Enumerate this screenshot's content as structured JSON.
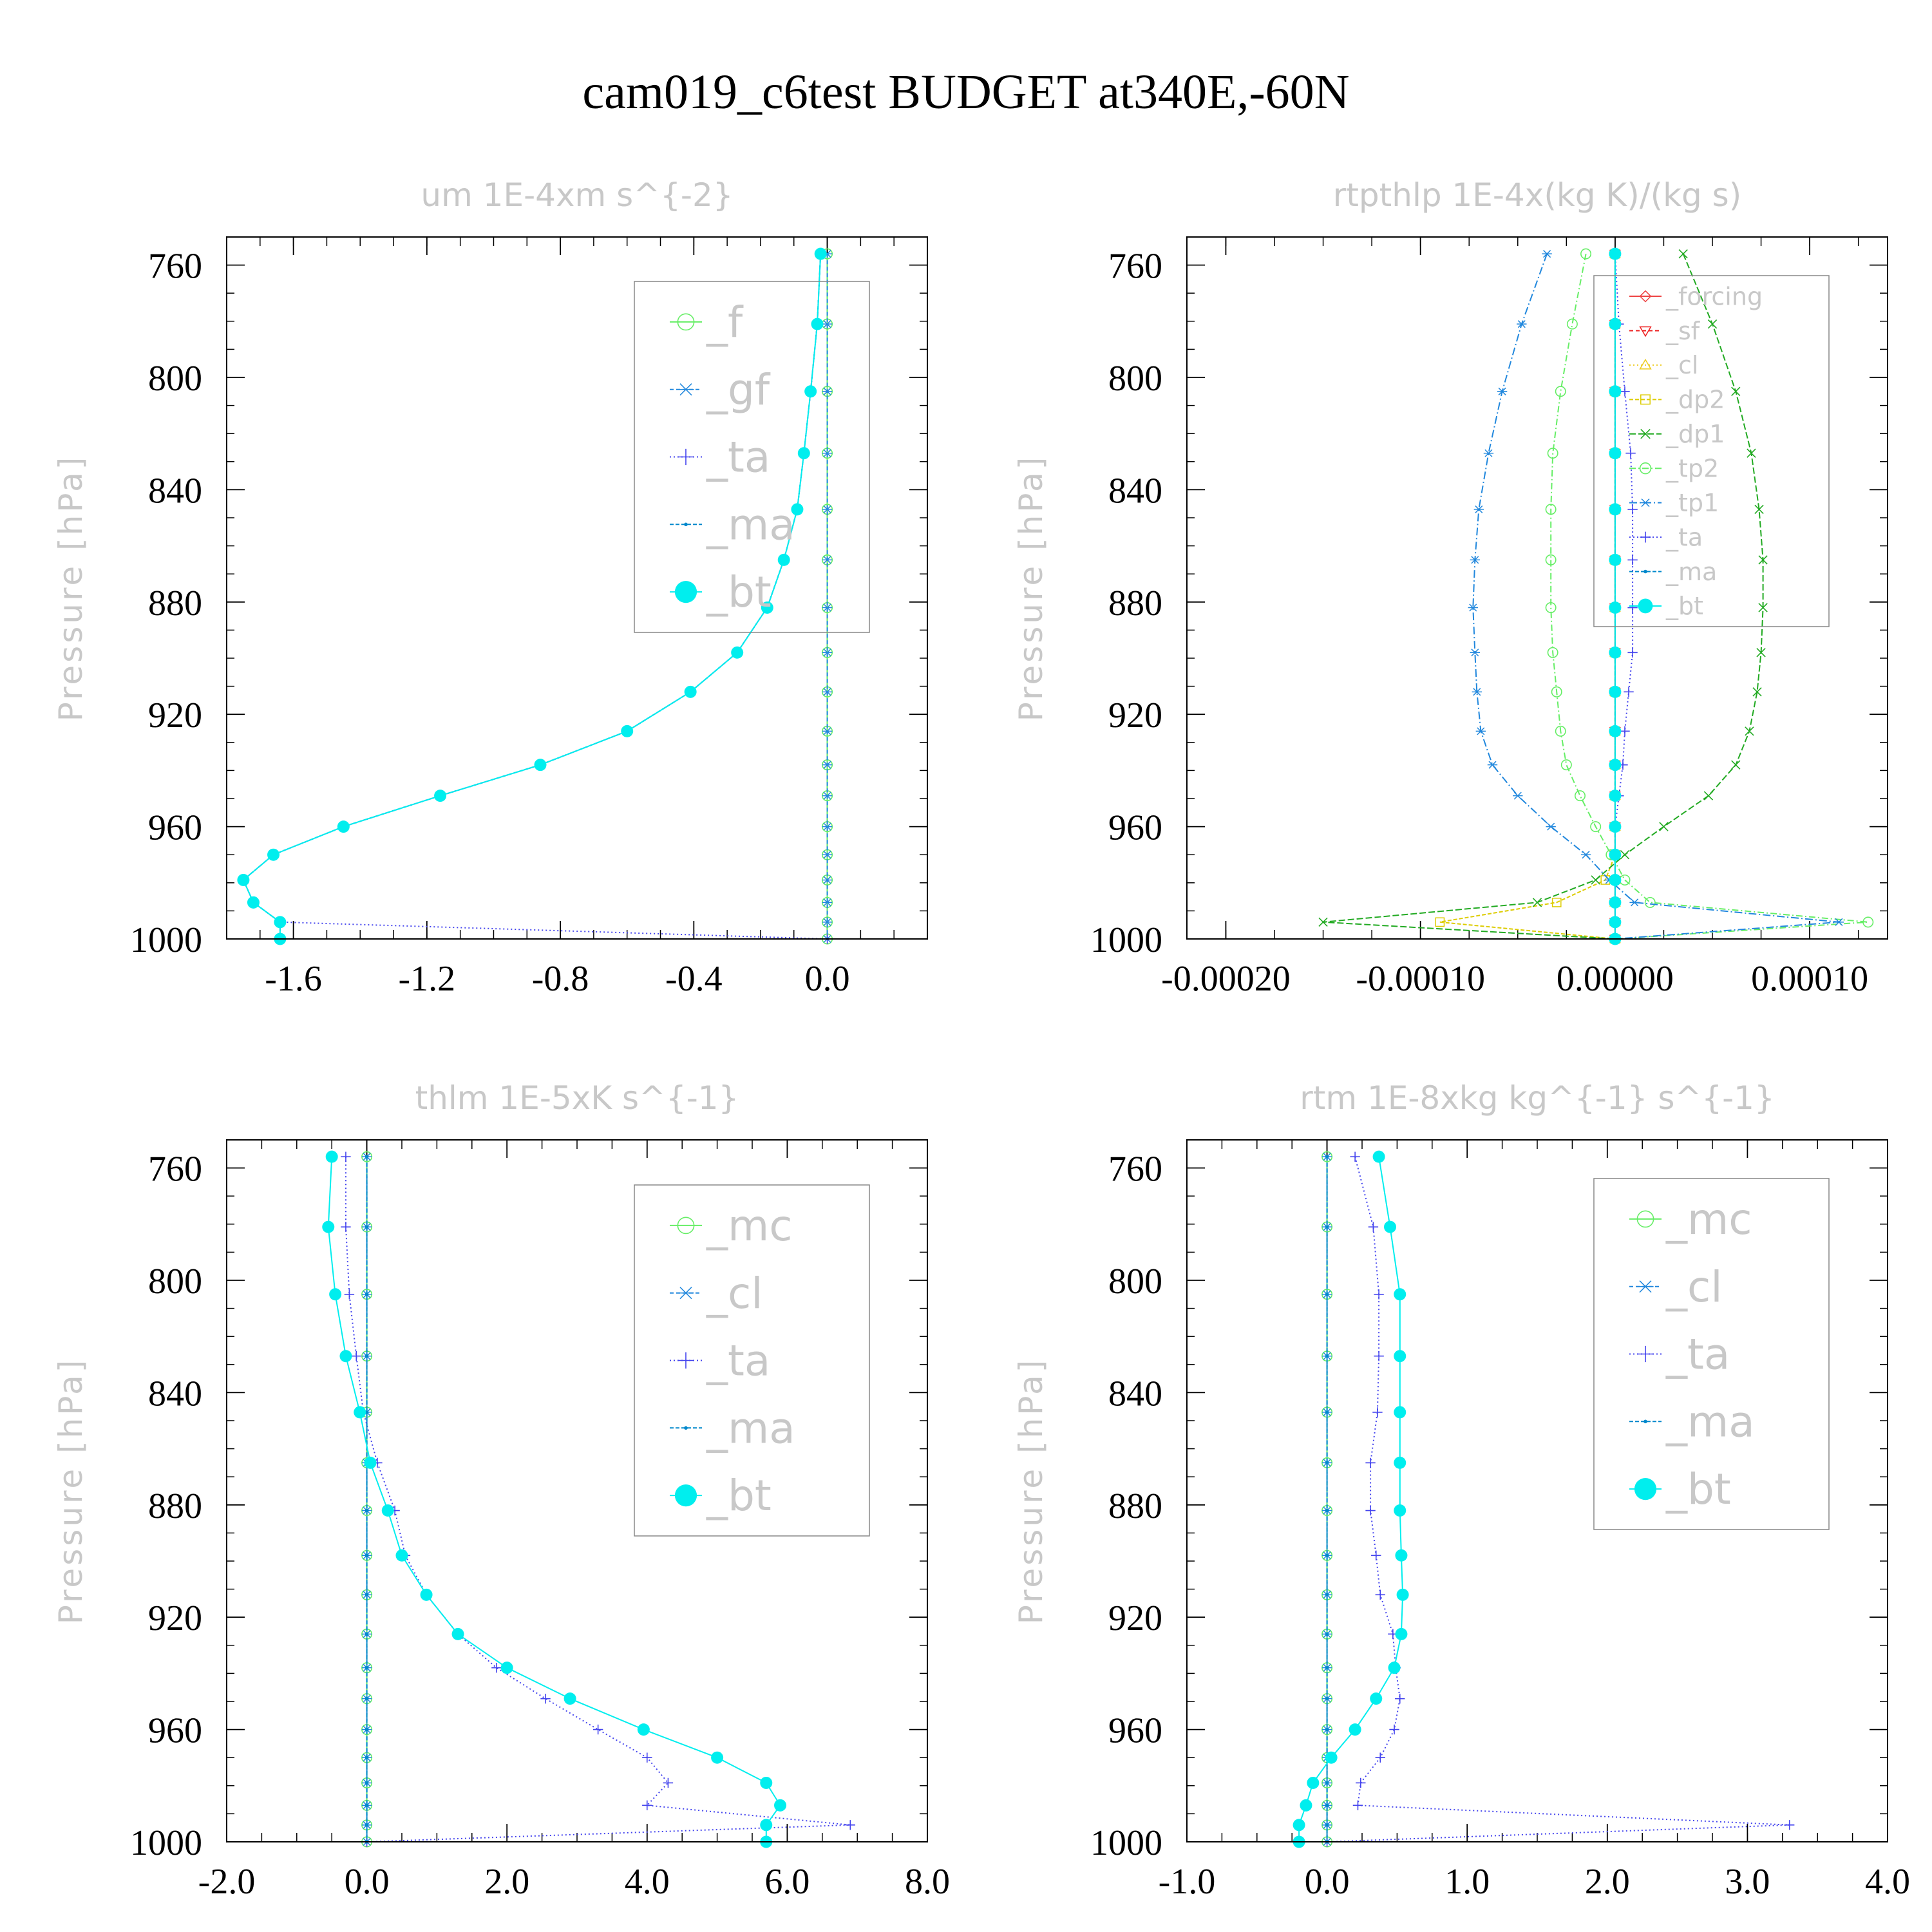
{
  "figure_title": "cam019_c6test  BUDGET at340E,-60N",
  "colors": {
    "f": "#66ee66",
    "gf": "#2288dd",
    "ta": "#4444ee",
    "ma": "#0088cc",
    "bt": "#00eeee",
    "forcing": "#ee4444",
    "sf": "#ee2222",
    "cl_yellow": "#eecc22",
    "dp2": "#ddcc00",
    "dp1": "#22aa22",
    "tp2": "#66ee66",
    "tp1": "#2288dd",
    "mc": "#66ee66",
    "cl": "#2288dd",
    "muted_text": "#c8c8c8",
    "frame": "#000000"
  },
  "chart_data": [
    {
      "type": "line",
      "title": "um   1E-4xm s^{-2}",
      "ylabel": "Pressure [hPa]",
      "xlabel": "",
      "xlim": [
        -1.8,
        0.3
      ],
      "ylim": [
        750,
        1000
      ],
      "y_inverted": true,
      "xticks": [
        -1.6,
        -1.2,
        -0.8,
        -0.4,
        0.0
      ],
      "xtick_labels": [
        "-1.6",
        "-1.2",
        "-0.8",
        "-0.4",
        "0.0"
      ],
      "yticks": [
        760,
        800,
        840,
        880,
        920,
        960,
        1000
      ],
      "ytick_labels": [
        "760",
        "800",
        "840",
        "880",
        "920",
        "960",
        "1000"
      ],
      "legend_position": "upper-right",
      "y": [
        756,
        781,
        805,
        827,
        847,
        865,
        882,
        898,
        912,
        926,
        938,
        949,
        960,
        970,
        979,
        987,
        994,
        1000
      ],
      "series": [
        {
          "name": "_f",
          "key": "f",
          "marker": "circle-open",
          "dash": "none",
          "values": [
            0,
            0,
            0,
            0,
            0,
            0,
            0,
            0,
            0,
            0,
            0,
            0,
            0,
            0,
            0,
            0,
            0,
            0
          ]
        },
        {
          "name": "_gf",
          "key": "gf",
          "marker": "star",
          "dash": "6,4",
          "values": [
            0,
            0,
            0,
            0,
            0,
            0,
            0,
            0,
            0,
            0,
            0,
            0,
            0,
            0,
            0,
            0,
            0,
            0
          ]
        },
        {
          "name": "_ta",
          "key": "ta",
          "marker": "plus",
          "dash": "2,4",
          "values": [
            -0.02,
            -0.03,
            -0.05,
            -0.07,
            -0.09,
            -0.13,
            -0.18,
            -0.27,
            -0.41,
            -0.6,
            -0.86,
            -1.16,
            -1.45,
            -1.66,
            -1.75,
            -1.72,
            -1.64,
            0.0
          ]
        },
        {
          "name": "_ma",
          "key": "ma",
          "marker": "dot-small",
          "dash": "6,3",
          "values": [
            -0.02,
            -0.03,
            -0.05,
            -0.07,
            -0.09,
            -0.13,
            -0.18,
            -0.27,
            -0.41,
            -0.6,
            -0.86,
            -1.16,
            -1.45,
            -1.66,
            -1.75,
            -1.72,
            -1.64,
            -1.64
          ]
        },
        {
          "name": "_bt",
          "key": "bt",
          "marker": "dot-filled",
          "dash": "none",
          "values": [
            -0.02,
            -0.03,
            -0.05,
            -0.07,
            -0.09,
            -0.13,
            -0.18,
            -0.27,
            -0.41,
            -0.6,
            -0.86,
            -1.16,
            -1.45,
            -1.66,
            -1.75,
            -1.72,
            -1.64,
            -1.64
          ]
        }
      ]
    },
    {
      "type": "line",
      "title": "rtpthlp   1E-4x(kg K)/(kg s)",
      "ylabel": "Pressure [hPa]",
      "xlabel": "",
      "xlim": [
        -0.00022,
        0.00014
      ],
      "ylim": [
        750,
        1000
      ],
      "y_inverted": true,
      "xticks": [
        -0.0002,
        -0.0001,
        0.0,
        0.0001
      ],
      "xtick_labels": [
        "-0.00020",
        "-0.00010",
        "0.00000",
        "0.00010"
      ],
      "yticks": [
        760,
        800,
        840,
        880,
        920,
        960,
        1000
      ],
      "ytick_labels": [
        "760",
        "800",
        "840",
        "880",
        "920",
        "960",
        "1000"
      ],
      "legend_position": "upper-right",
      "y": [
        756,
        781,
        805,
        827,
        847,
        865,
        882,
        898,
        912,
        926,
        938,
        949,
        960,
        970,
        979,
        987,
        994,
        1000
      ],
      "series": [
        {
          "name": "_forcing",
          "key": "forcing",
          "marker": "diamond",
          "dash": "none",
          "values": [
            0,
            0,
            0,
            0,
            0,
            0,
            0,
            0,
            0,
            0,
            0,
            0,
            0,
            0,
            0,
            0,
            0,
            0
          ]
        },
        {
          "name": "_sf",
          "key": "sf",
          "marker": "triangle-down",
          "dash": "6,4",
          "values": [
            0,
            0,
            0,
            0,
            0,
            0,
            0,
            0,
            0,
            0,
            0,
            0,
            0,
            0,
            0,
            0,
            0,
            0
          ]
        },
        {
          "name": "_cl",
          "key": "cl_yellow",
          "marker": "triangle-up",
          "dash": "2,4",
          "values": [
            0,
            0,
            0,
            0,
            0,
            0,
            0,
            0,
            0,
            0,
            0,
            0,
            0,
            0,
            0,
            0,
            0,
            0
          ]
        },
        {
          "name": "_dp2",
          "key": "dp2",
          "marker": "square",
          "dash": "6,3",
          "values": [
            0,
            0,
            0,
            0,
            0,
            0,
            0,
            0,
            0,
            0,
            0,
            0,
            0,
            0,
            -5e-06,
            -3e-05,
            -9e-05,
            0
          ]
        },
        {
          "name": "_dp1",
          "key": "dp1",
          "marker": "x",
          "dash": "10,4",
          "values": [
            3.5e-05,
            5e-05,
            6.2e-05,
            7e-05,
            7.4e-05,
            7.6e-05,
            7.6e-05,
            7.5e-05,
            7.3e-05,
            6.9e-05,
            6.2e-05,
            4.8e-05,
            2.5e-05,
            5e-06,
            -1e-05,
            -4e-05,
            -0.00015,
            0
          ]
        },
        {
          "name": "_tp2",
          "key": "tp2",
          "marker": "circle-open",
          "dash": "10,4,2,4",
          "values": [
            -1.5e-05,
            -2.2e-05,
            -2.8e-05,
            -3.2e-05,
            -3.3e-05,
            -3.3e-05,
            -3.3e-05,
            -3.2e-05,
            -3e-05,
            -2.8e-05,
            -2.5e-05,
            -1.8e-05,
            -1e-05,
            -2e-06,
            5e-06,
            1.8e-05,
            0.00013,
            0
          ]
        },
        {
          "name": "_tp1",
          "key": "tp1",
          "marker": "star",
          "dash": "12,4,2,4",
          "values": [
            -3.5e-05,
            -4.8e-05,
            -5.8e-05,
            -6.5e-05,
            -7e-05,
            -7.2e-05,
            -7.3e-05,
            -7.2e-05,
            -7.1e-05,
            -6.9e-05,
            -6.3e-05,
            -5e-05,
            -3.3e-05,
            -1.5e-05,
            -3e-06,
            1e-05,
            0.000115,
            0
          ]
        },
        {
          "name": "_ta",
          "key": "ta",
          "marker": "plus",
          "dash": "2,4",
          "values": [
            0,
            2e-06,
            5e-06,
            8e-06,
            9e-06,
            9e-06,
            9e-06,
            9e-06,
            7e-06,
            5e-06,
            4e-06,
            2e-06,
            0,
            0,
            0,
            0,
            0,
            0
          ]
        },
        {
          "name": "_ma",
          "key": "ma",
          "marker": "dot-small",
          "dash": "6,3",
          "values": [
            0,
            0,
            0,
            0,
            0,
            0,
            0,
            0,
            0,
            0,
            0,
            0,
            0,
            0,
            0,
            0,
            0,
            0
          ]
        },
        {
          "name": "_bt",
          "key": "bt",
          "marker": "dot-filled",
          "dash": "none",
          "values": [
            0,
            0,
            0,
            0,
            0,
            0,
            0,
            0,
            0,
            0,
            0,
            0,
            0,
            0,
            0,
            0,
            0,
            0
          ]
        }
      ]
    },
    {
      "type": "line",
      "title": "thlm   1E-5xK s^{-1}",
      "ylabel": "Pressure [hPa]",
      "xlabel": "",
      "xlim": [
        -2.0,
        8.0
      ],
      "ylim": [
        750,
        1000
      ],
      "y_inverted": true,
      "xticks": [
        -2.0,
        0.0,
        2.0,
        4.0,
        6.0,
        8.0
      ],
      "xtick_labels": [
        "-2.0",
        "0.0",
        "2.0",
        "4.0",
        "6.0",
        "8.0"
      ],
      "yticks": [
        760,
        800,
        840,
        880,
        920,
        960,
        1000
      ],
      "ytick_labels": [
        "760",
        "800",
        "840",
        "880",
        "920",
        "960",
        "1000"
      ],
      "legend_position": "upper-right",
      "y": [
        756,
        781,
        805,
        827,
        847,
        865,
        882,
        898,
        912,
        926,
        938,
        949,
        960,
        970,
        979,
        987,
        994,
        1000
      ],
      "series": [
        {
          "name": "_mc",
          "key": "mc",
          "marker": "circle-open",
          "dash": "none",
          "values": [
            0,
            0,
            0,
            0,
            0,
            0,
            0,
            0,
            0,
            0,
            0,
            0,
            0,
            0,
            0,
            0,
            0,
            0
          ]
        },
        {
          "name": "_cl",
          "key": "cl",
          "marker": "star",
          "dash": "6,4",
          "values": [
            0,
            0,
            0,
            0,
            0,
            0,
            0,
            0,
            0,
            0,
            0,
            0,
            0,
            0,
            0,
            0,
            0,
            0
          ]
        },
        {
          "name": "_ta",
          "key": "ta",
          "marker": "plus",
          "dash": "2,4",
          "values": [
            -0.3,
            -0.3,
            -0.25,
            -0.15,
            -0.05,
            0.15,
            0.4,
            0.55,
            0.85,
            1.3,
            1.85,
            2.55,
            3.3,
            4.0,
            4.3,
            4.0,
            6.9,
            0.0
          ]
        },
        {
          "name": "_ma",
          "key": "ma",
          "marker": "dot-small",
          "dash": "6,3",
          "values": [
            0,
            0,
            0,
            0,
            0,
            0,
            0,
            0,
            0,
            0,
            0,
            0,
            0,
            0,
            0,
            0,
            0,
            0
          ]
        },
        {
          "name": "_bt",
          "key": "bt",
          "marker": "dot-filled",
          "dash": "none",
          "values": [
            -0.5,
            -0.55,
            -0.45,
            -0.3,
            -0.1,
            0.05,
            0.3,
            0.5,
            0.85,
            1.3,
            2.0,
            2.9,
            3.95,
            5.0,
            5.7,
            5.9,
            5.7,
            5.7
          ]
        }
      ]
    },
    {
      "type": "line",
      "title": "rtm   1E-8xkg kg^{-1} s^{-1}",
      "ylabel": "Pressure [hPa]",
      "xlabel": "",
      "xlim": [
        -1.0,
        4.0
      ],
      "ylim": [
        750,
        1000
      ],
      "y_inverted": true,
      "xticks": [
        -1.0,
        0.0,
        1.0,
        2.0,
        3.0,
        4.0
      ],
      "xtick_labels": [
        "-1.0",
        "0.0",
        "1.0",
        "2.0",
        "3.0",
        "4.0"
      ],
      "yticks": [
        760,
        800,
        840,
        880,
        920,
        960,
        1000
      ],
      "ytick_labels": [
        "760",
        "800",
        "840",
        "880",
        "920",
        "960",
        "1000"
      ],
      "legend_position": "upper-right",
      "y": [
        756,
        781,
        805,
        827,
        847,
        865,
        882,
        898,
        912,
        926,
        938,
        949,
        960,
        970,
        979,
        987,
        994,
        1000
      ],
      "series": [
        {
          "name": "_mc",
          "key": "mc",
          "marker": "circle-open",
          "dash": "none",
          "values": [
            0,
            0,
            0,
            0,
            0,
            0,
            0,
            0,
            0,
            0,
            0,
            0,
            0,
            0,
            0,
            0,
            0,
            0
          ]
        },
        {
          "name": "_cl",
          "key": "cl",
          "marker": "star",
          "dash": "6,4",
          "values": [
            0,
            0,
            0,
            0,
            0,
            0,
            0,
            0,
            0,
            0,
            0,
            0,
            0,
            0,
            0,
            0,
            0,
            0
          ]
        },
        {
          "name": "_ta",
          "key": "ta",
          "marker": "plus",
          "dash": "2,4",
          "values": [
            0.2,
            0.33,
            0.37,
            0.37,
            0.36,
            0.31,
            0.31,
            0.35,
            0.38,
            0.47,
            0.49,
            0.52,
            0.48,
            0.38,
            0.24,
            0.22,
            3.3,
            0
          ]
        },
        {
          "name": "_ma",
          "key": "ma",
          "marker": "dot-small",
          "dash": "6,3",
          "values": [
            0,
            0,
            0,
            0,
            0,
            0,
            0,
            0,
            0,
            0,
            0,
            0,
            0,
            0,
            0,
            0,
            0,
            0
          ]
        },
        {
          "name": "_bt",
          "key": "bt",
          "marker": "dot-filled",
          "dash": "none",
          "values": [
            0.37,
            0.45,
            0.52,
            0.52,
            0.52,
            0.52,
            0.52,
            0.53,
            0.54,
            0.53,
            0.48,
            0.35,
            0.2,
            0.03,
            -0.1,
            -0.15,
            -0.2,
            -0.2
          ]
        }
      ]
    }
  ]
}
